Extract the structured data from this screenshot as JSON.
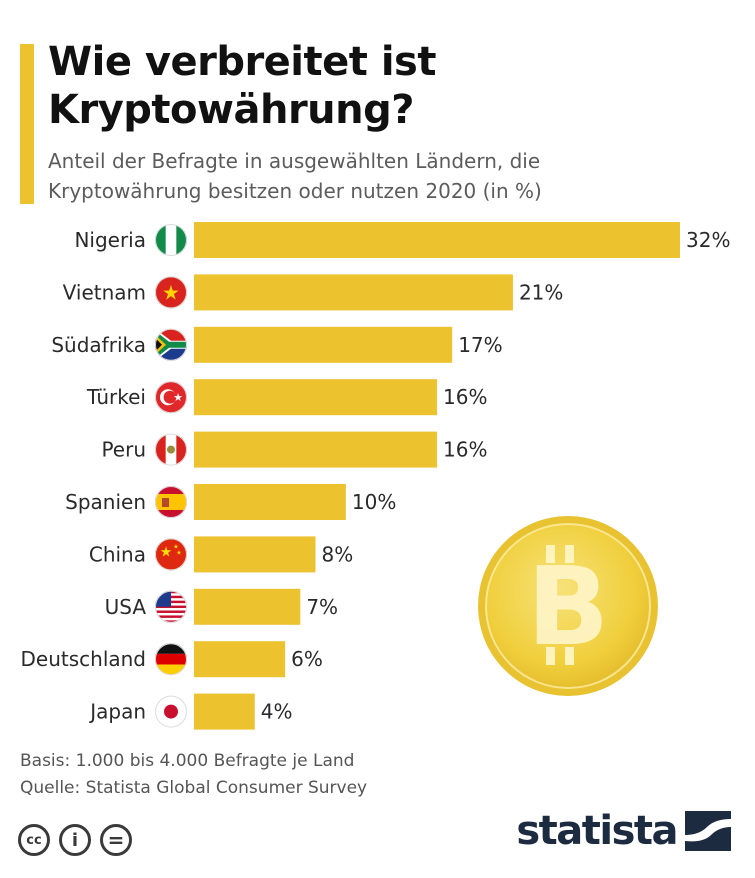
{
  "header": {
    "title_line1": "Wie verbreitet ist",
    "title_line2": "Kryptowährung?",
    "subtitle_line1": "Anteil der Befragte in ausgewählten Ländern, die",
    "subtitle_line2": "Kryptowährung besitzen oder nutzen 2020 (in %)"
  },
  "chart_data": {
    "type": "bar",
    "orientation": "horizontal",
    "title": "Wie verbreitet ist Kryptowährung?",
    "subtitle": "Anteil der Befragte in ausgewählten Ländern, die Kryptowährung besitzen oder nutzen 2020 (in %)",
    "categories": [
      "Nigeria",
      "Vietnam",
      "Südafrika",
      "Türkei",
      "Peru",
      "Spanien",
      "China",
      "USA",
      "Deutschland",
      "Japan"
    ],
    "values": [
      32,
      21,
      17,
      16,
      16,
      10,
      8,
      7,
      6,
      4
    ],
    "value_labels": [
      "32%",
      "21%",
      "17%",
      "16%",
      "16%",
      "10%",
      "8%",
      "7%",
      "6%",
      "4%"
    ],
    "unit": "%",
    "xlim": [
      0,
      32
    ],
    "grid": false,
    "bar_color": "#ecc22f"
  },
  "flags": [
    "nigeria-flag-icon",
    "vietnam-flag-icon",
    "south-africa-flag-icon",
    "turkey-flag-icon",
    "peru-flag-icon",
    "spain-flag-icon",
    "china-flag-icon",
    "usa-flag-icon",
    "germany-flag-icon",
    "japan-flag-icon"
  ],
  "decoration": {
    "coin_icon": "bitcoin-coin-icon"
  },
  "footer": {
    "basis": "Basis: 1.000 bis 4.000 Befragte je Land",
    "source": "Quelle: Statista Global Consumer Survey",
    "cc_icons": [
      "cc",
      "i",
      "="
    ],
    "brand": "statista"
  },
  "colors": {
    "accent": "#ecc22f",
    "brand": "#1c2b3f",
    "coin": "#f2d13e"
  }
}
